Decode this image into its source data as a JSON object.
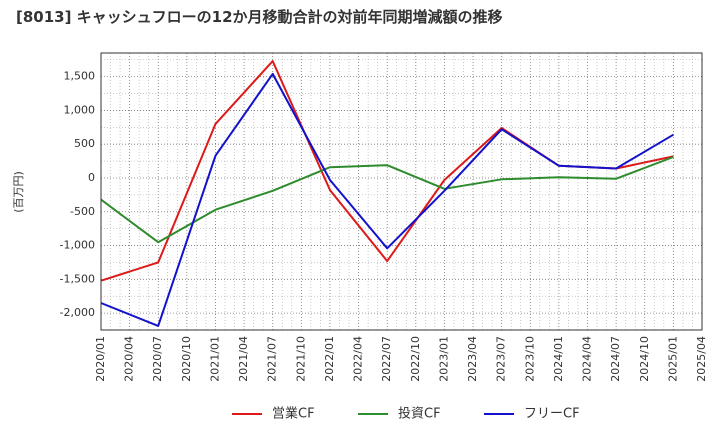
{
  "chart_data": {
    "type": "line",
    "title": "[8013]  キャッシュフローの12か月移動合計の対前年同期増減額の推移",
    "xlabel": "",
    "ylabel": "(百万円)",
    "ylim": [
      -2250,
      1850
    ],
    "yticks": [
      -2000,
      -1500,
      -1000,
      -500,
      0,
      500,
      1000,
      1500
    ],
    "ytick_labels": [
      "-2,000",
      "-1,500",
      "-1,000",
      "-500",
      "0",
      "500",
      "1,000",
      "1,500"
    ],
    "categories": [
      "2020/01",
      "2020/04",
      "2020/07",
      "2020/10",
      "2021/01",
      "2021/04",
      "2021/07",
      "2021/10",
      "2022/01",
      "2022/04",
      "2022/07",
      "2022/10",
      "2023/01",
      "2023/04",
      "2023/07",
      "2023/10",
      "2024/01",
      "2024/04",
      "2024/07",
      "2024/10",
      "2025/01",
      "2025/04"
    ],
    "grid": true,
    "series": [
      {
        "name": "営業CF",
        "color": "#dd1a1a",
        "x": [
          "2020/01",
          "2020/07",
          "2021/01",
          "2021/07",
          "2022/01",
          "2022/07",
          "2023/01",
          "2023/07",
          "2024/01",
          "2024/07",
          "2025/01"
        ],
        "values": [
          -1520,
          -1250,
          800,
          1730,
          -180,
          -1230,
          -30,
          740,
          180,
          140,
          320
        ]
      },
      {
        "name": "投資CF",
        "color": "#2e8b2e",
        "x": [
          "2020/01",
          "2020/07",
          "2021/01",
          "2021/07",
          "2022/01",
          "2022/07",
          "2023/01",
          "2023/07",
          "2024/01",
          "2024/07",
          "2025/01"
        ],
        "values": [
          -320,
          -950,
          -470,
          -190,
          160,
          190,
          -160,
          -20,
          10,
          -10,
          310
        ]
      },
      {
        "name": "フリーCF",
        "color": "#1212cc",
        "x": [
          "2020/01",
          "2020/07",
          "2021/01",
          "2021/07",
          "2022/01",
          "2022/07",
          "2023/01",
          "2023/07",
          "2024/01",
          "2024/07",
          "2025/01"
        ],
        "values": [
          -1850,
          -2190,
          330,
          1540,
          -30,
          -1040,
          -190,
          720,
          180,
          140,
          640
        ]
      }
    ],
    "legend": {
      "position": "bottom",
      "items": [
        "営業CF",
        "投資CF",
        "フリーCF"
      ]
    }
  }
}
